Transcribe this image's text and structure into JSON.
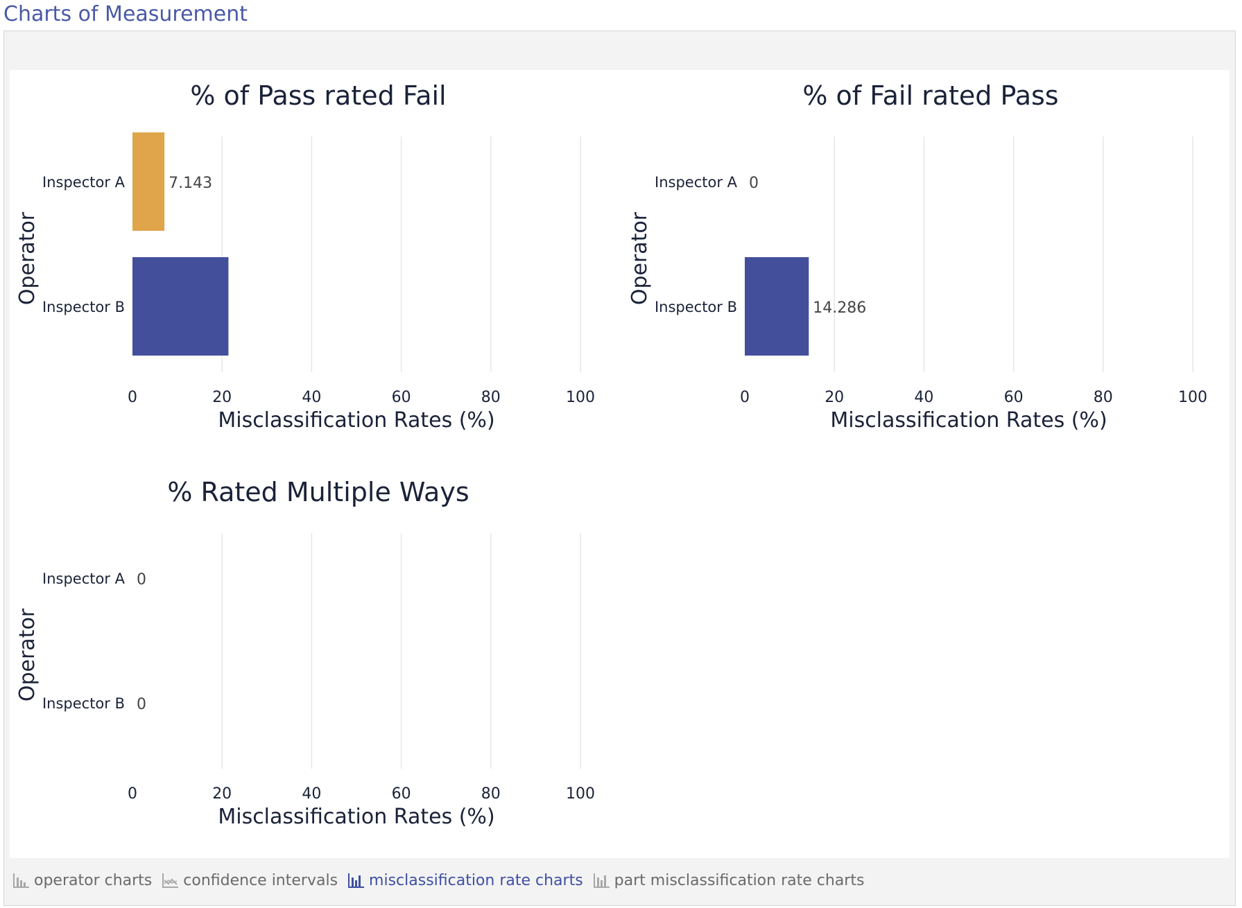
{
  "page": {
    "title": "Charts of Measurement"
  },
  "tabs": [
    {
      "label": "operator charts",
      "icon": "bar-chart-icon",
      "active": false
    },
    {
      "label": "confidence intervals",
      "icon": "line-chart-icon",
      "active": false
    },
    {
      "label": "misclassification rate charts",
      "icon": "bar-chart-icon",
      "active": true
    },
    {
      "label": "part misclassification rate charts",
      "icon": "bar-chart-icon",
      "active": false
    }
  ],
  "colors": {
    "inspector_a": "#e0a44b",
    "inspector_b": "#444f9c",
    "grid": "#e6e6e6",
    "text": "#1a2238",
    "active_tab": "#3e4fa3"
  },
  "chart_data": [
    {
      "type": "bar",
      "orientation": "horizontal",
      "title": "% of Pass rated Fail",
      "categories": [
        "Inspector A",
        "Inspector B"
      ],
      "values": [
        7.143,
        21.429
      ],
      "data_labels": [
        "7.143",
        ""
      ],
      "xlabel": "Misclassification Rates (%)",
      "ylabel": "Operator",
      "xlim": [
        0,
        100
      ],
      "xticks": [
        0,
        20,
        40,
        60,
        80,
        100
      ],
      "grid": true
    },
    {
      "type": "bar",
      "orientation": "horizontal",
      "title": "% of Fail rated Pass",
      "categories": [
        "Inspector A",
        "Inspector B"
      ],
      "values": [
        0,
        14.286
      ],
      "data_labels": [
        "0",
        "14.286"
      ],
      "xlabel": "Misclassification Rates (%)",
      "ylabel": "Operator",
      "xlim": [
        0,
        100
      ],
      "xticks": [
        0,
        20,
        40,
        60,
        80,
        100
      ],
      "grid": true
    },
    {
      "type": "bar",
      "orientation": "horizontal",
      "title": "% Rated Multiple Ways",
      "categories": [
        "Inspector A",
        "Inspector B"
      ],
      "values": [
        0,
        0
      ],
      "data_labels": [
        "0",
        "0"
      ],
      "xlabel": "Misclassification Rates (%)",
      "ylabel": "Operator",
      "xlim": [
        0,
        100
      ],
      "xticks": [
        0,
        20,
        40,
        60,
        80,
        100
      ],
      "grid": true
    }
  ]
}
